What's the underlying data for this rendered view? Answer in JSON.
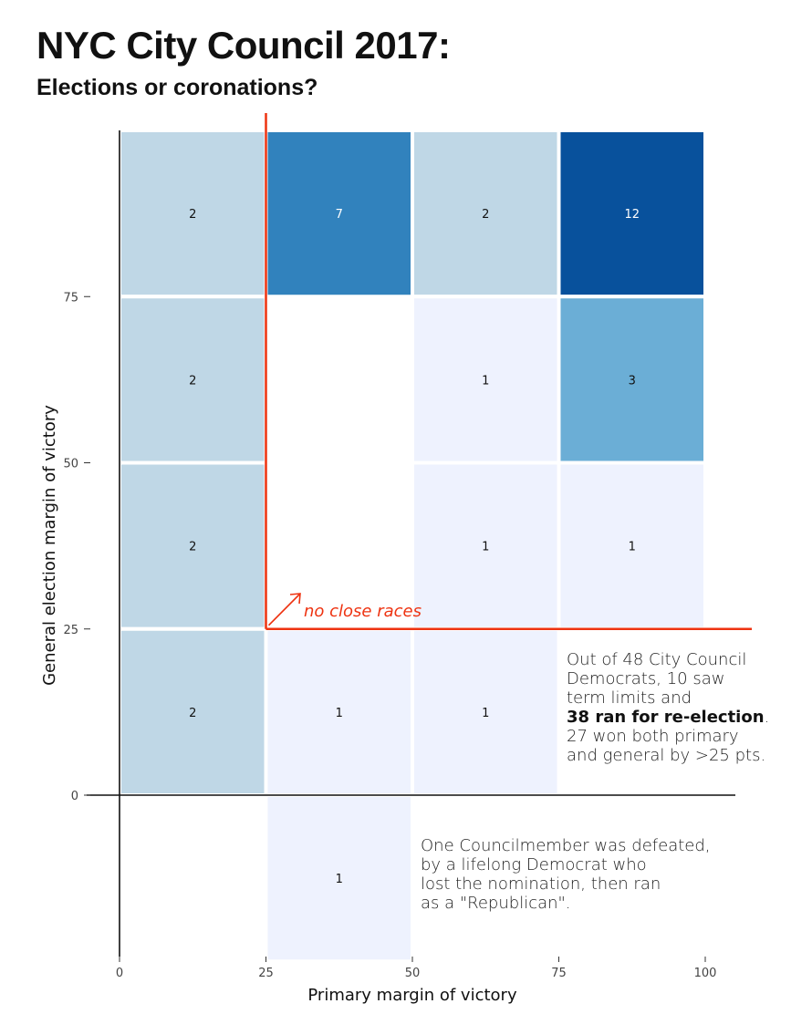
{
  "header": {
    "title": "NYC City Council 2017:",
    "subtitle": "Elections or coronations?"
  },
  "chart_data": {
    "type": "heatmap",
    "title": "NYC City Council 2017:",
    "subtitle": "Elections or coronations?",
    "xlabel": "Primary margin of victory",
    "ylabel": "General election margin of victory",
    "xlim": [
      0,
      100
    ],
    "ylim": [
      -25,
      100
    ],
    "x_ticks": [
      0,
      25,
      50,
      75,
      100
    ],
    "y_ticks": [
      0,
      25,
      50,
      75
    ],
    "grid": false,
    "bin_width": 25,
    "cells": [
      {
        "x": [
          0,
          25
        ],
        "y": [
          75,
          100
        ],
        "count": 2
      },
      {
        "x": [
          25,
          50
        ],
        "y": [
          75,
          100
        ],
        "count": 7
      },
      {
        "x": [
          50,
          75
        ],
        "y": [
          75,
          100
        ],
        "count": 2
      },
      {
        "x": [
          75,
          100
        ],
        "y": [
          75,
          100
        ],
        "count": 12
      },
      {
        "x": [
          0,
          25
        ],
        "y": [
          50,
          75
        ],
        "count": 2
      },
      {
        "x": [
          50,
          75
        ],
        "y": [
          50,
          75
        ],
        "count": 1
      },
      {
        "x": [
          75,
          100
        ],
        "y": [
          50,
          75
        ],
        "count": 3
      },
      {
        "x": [
          0,
          25
        ],
        "y": [
          25,
          50
        ],
        "count": 2
      },
      {
        "x": [
          50,
          75
        ],
        "y": [
          25,
          50
        ],
        "count": 1
      },
      {
        "x": [
          75,
          100
        ],
        "y": [
          25,
          50
        ],
        "count": 1
      },
      {
        "x": [
          0,
          25
        ],
        "y": [
          0,
          25
        ],
        "count": 2
      },
      {
        "x": [
          25,
          50
        ],
        "y": [
          0,
          25
        ],
        "count": 1
      },
      {
        "x": [
          50,
          75
        ],
        "y": [
          0,
          25
        ],
        "count": 1
      },
      {
        "x": [
          25,
          50
        ],
        "y": [
          -25,
          0
        ],
        "count": 1
      }
    ],
    "colors": {
      "c1": "#eef2fe",
      "c2": "#bfd7e6",
      "c3": "#6baed6",
      "c7": "#3182bd",
      "c12": "#08519c",
      "label_dark": "#111111",
      "label_light": "#ffffff",
      "highlight": "#ee3311"
    },
    "highlight_threshold": 25,
    "annotations": {
      "callout": "no close races",
      "note_right": [
        {
          "text": "Out of 48 City Council",
          "bold": false
        },
        {
          "text": "Democrats, 10 saw",
          "bold": false
        },
        {
          "text": "term limits and",
          "bold": false
        },
        {
          "text": "38 ran for re-election",
          "bold": true,
          "suffix": "."
        },
        {
          "text": "27 won both primary",
          "bold": false
        },
        {
          "text": "and general by >25 pts.",
          "bold": false
        }
      ],
      "note_bottom": [
        "One Councilmember was defeated,",
        "by a lifelong Democrat who",
        "lost the nomination, then ran",
        "as a \"Republican\"."
      ]
    }
  }
}
